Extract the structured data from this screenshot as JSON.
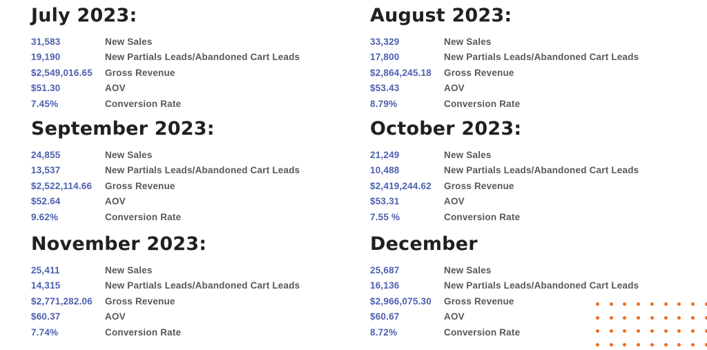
{
  "colors": {
    "heading": "#231f20",
    "value": "#4d5fb0",
    "label": "#56575b",
    "dot": "#f26a21",
    "background": "#ffffff"
  },
  "metric_labels": [
    "New Sales",
    "New Partials Leads/Abandoned Cart Leads",
    "Gross Revenue",
    "AOV",
    "Conversion Rate"
  ],
  "months": [
    {
      "title": "July 2023:",
      "values": [
        "31,583",
        "19,190",
        "$2,549,016.65",
        "$51.30",
        "7.45%"
      ]
    },
    {
      "title": "August 2023:",
      "values": [
        "33,329",
        "17,800",
        "$2,864,245.18",
        "$53.43",
        "8.79%"
      ]
    },
    {
      "title": "September 2023:",
      "values": [
        "24,855",
        "13,537",
        "$2,522,114.66",
        "$52.64",
        "9.62%"
      ]
    },
    {
      "title": "October 2023:",
      "values": [
        "21,249",
        "10,488",
        "$2,419,244.62",
        "$53.31",
        "7.55 %"
      ]
    },
    {
      "title": "November 2023:",
      "values": [
        "25,411",
        "14,315",
        "$2,771,282.06",
        "$60.37",
        "7.74%"
      ]
    },
    {
      "title": "December",
      "values": [
        "25,687",
        "16,136",
        "$2,966,075.30",
        "$60.67",
        "8.72%"
      ]
    }
  ],
  "decoration": {
    "dot_rows": 4,
    "dot_cols": 9,
    "dot_spacing_x": 19.7,
    "dot_spacing_y": 19.5,
    "dot_color": "#f26a21"
  }
}
